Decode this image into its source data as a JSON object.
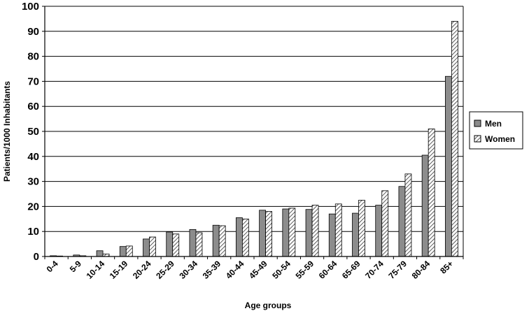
{
  "chart_data": {
    "type": "bar",
    "xlabel": "Age groups",
    "ylabel": "Patients/1000 Inhabitants",
    "ylim": [
      0,
      100
    ],
    "yticks": [
      0,
      10,
      20,
      30,
      40,
      50,
      60,
      70,
      80,
      90,
      100
    ],
    "grid": true,
    "legend_position": "right",
    "categories": [
      "0-4",
      "5-9",
      "10-14",
      "15-19",
      "20-24",
      "25-29",
      "30-34",
      "35-39",
      "40-44",
      "45-49",
      "50-54",
      "55-59",
      "60-64",
      "65-69",
      "70-74",
      "75-79",
      "80-84",
      "85+"
    ],
    "series": [
      {
        "name": "Men",
        "fill": "solid",
        "color": "#8c8c8c",
        "values": [
          0.3,
          0.6,
          2.3,
          4.0,
          7.0,
          9.8,
          10.8,
          12.5,
          15.5,
          18.5,
          19.0,
          18.8,
          17.0,
          17.3,
          20.5,
          28.0,
          40.5,
          72.0
        ]
      },
      {
        "name": "Women",
        "fill": "hatched",
        "color": "#ffffff",
        "values": [
          0.2,
          0.3,
          1.0,
          4.2,
          7.8,
          9.0,
          9.5,
          12.3,
          15.0,
          18.0,
          19.3,
          20.5,
          21.0,
          22.5,
          26.3,
          33.0,
          51.0,
          94.0
        ]
      }
    ]
  }
}
